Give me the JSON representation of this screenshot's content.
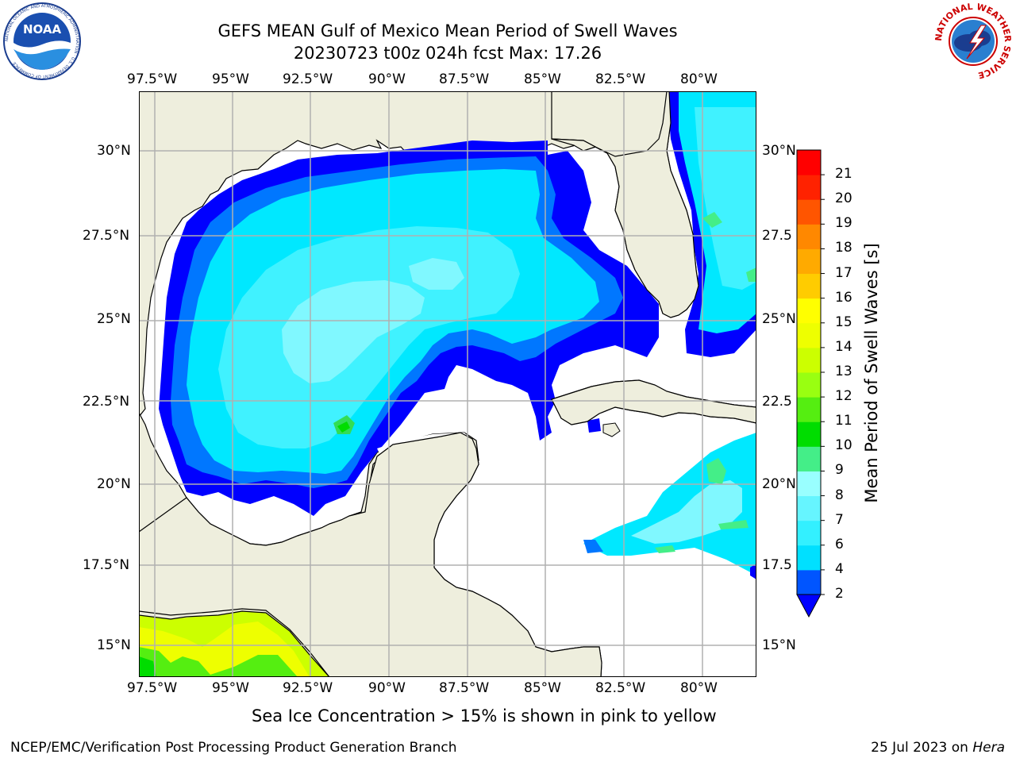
{
  "header": {
    "title_line1": "GEFS MEAN Gulf of Mexico Mean Period of Swell Waves",
    "title_line2": "20230723 t00z 024h fcst   Max: 17.26"
  },
  "map": {
    "lon_labels": [
      "97.5°W",
      "95°W",
      "92.5°W",
      "90°W",
      "87.5°W",
      "85°W",
      "82.5°W",
      "80°W"
    ],
    "lat_labels_left": [
      "30°N",
      "27.5°N",
      "25°N",
      "22.5°N",
      "20°N",
      "17.5°N",
      "15°N"
    ],
    "lat_labels_right": [
      "30°N",
      "27.5",
      "25°N",
      "22.5",
      "20°N",
      "17.5",
      "15°N"
    ],
    "colors": {
      "land": "#eeeedd",
      "ocean_masked": "#ffffff",
      "grid": "#b0b0b0",
      "coast": "#000000"
    }
  },
  "colorbar": {
    "label": "Mean Period of Swell Waves [s]",
    "ticks": [
      "2",
      "4",
      "6",
      "7",
      "8",
      "9",
      "10",
      "11",
      "12",
      "13",
      "14",
      "15",
      "16",
      "17",
      "18",
      "19",
      "20",
      "21"
    ],
    "colors": [
      "#0055ff",
      "#00e0ff",
      "#33f0ff",
      "#66f5ff",
      "#99ffff",
      "#44ee88",
      "#00dd00",
      "#55ee11",
      "#99ff11",
      "#ccff00",
      "#eeff00",
      "#ffff00",
      "#ffcc00",
      "#ffaa00",
      "#ff8800",
      "#ff5500",
      "#ff2200",
      "#ff0000"
    ],
    "underflow_color": "#0000ff"
  },
  "footer": {
    "note": "Sea Ice Concentration > 15% is shown in pink to yellow",
    "left": "NCEP/EMC/Verification Post Processing Product Generation Branch",
    "date": "25 Jul 2023 on ",
    "host": "Hera"
  },
  "logos": {
    "noaa": "NOAA",
    "noaa_ring": "NATIONAL OCEANIC AND ATMOSPHERIC ADMINISTRATION · U.S. DEPARTMENT OF COMMERCE",
    "nws_ring": "NATIONAL WEATHER SERVICE"
  }
}
